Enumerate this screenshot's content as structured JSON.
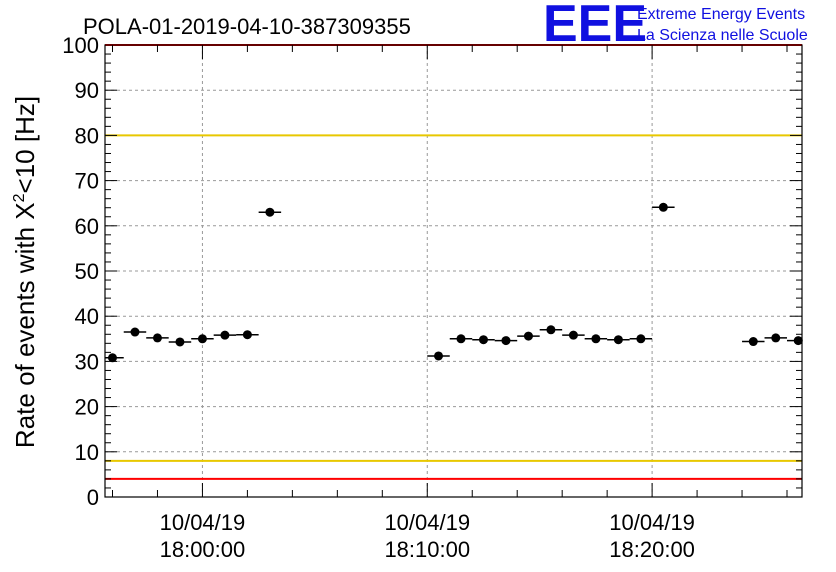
{
  "chart_data": {
    "type": "scatter",
    "title": "POLA-01-2019-04-10-387309355",
    "ylabel_main": "Rate of events with X",
    "ylabel_sup": "2",
    "ylabel_rest": "<10 [Hz]",
    "ylim": [
      0,
      100
    ],
    "yticks": [
      "0",
      "10",
      "20",
      "30",
      "40",
      "50",
      "60",
      "70",
      "80",
      "90",
      "100"
    ],
    "xlim": [
      "17:55:40",
      "18:26:40"
    ],
    "xticks": [
      {
        "date": "10/04/19",
        "time": "18:00:00"
      },
      {
        "date": "10/04/19",
        "time": "18:10:00"
      },
      {
        "date": "10/04/19",
        "time": "18:20:00"
      }
    ],
    "grid": true,
    "points": [
      {
        "x": "17:56:00",
        "y": 30.8
      },
      {
        "x": "17:57:00",
        "y": 36.5
      },
      {
        "x": "17:58:00",
        "y": 35.2
      },
      {
        "x": "17:59:00",
        "y": 34.3
      },
      {
        "x": "18:00:00",
        "y": 35.0
      },
      {
        "x": "18:01:00",
        "y": 35.8
      },
      {
        "x": "18:02:00",
        "y": 35.9
      },
      {
        "x": "18:03:00",
        "y": 63.0
      },
      {
        "x": "18:10:30",
        "y": 31.2
      },
      {
        "x": "18:11:30",
        "y": 35.0
      },
      {
        "x": "18:12:30",
        "y": 34.8
      },
      {
        "x": "18:13:30",
        "y": 34.6
      },
      {
        "x": "18:14:30",
        "y": 35.6
      },
      {
        "x": "18:15:30",
        "y": 37.0
      },
      {
        "x": "18:16:30",
        "y": 35.8
      },
      {
        "x": "18:17:30",
        "y": 35.0
      },
      {
        "x": "18:18:30",
        "y": 34.8
      },
      {
        "x": "18:19:30",
        "y": 35.0
      },
      {
        "x": "18:20:30",
        "y": 64.1
      },
      {
        "x": "18:24:30",
        "y": 34.4
      },
      {
        "x": "18:25:30",
        "y": 35.2
      },
      {
        "x": "18:26:30",
        "y": 34.6
      }
    ],
    "bin_width_minutes": 1,
    "reference_lines": [
      {
        "y": 100,
        "color": "#ff0000"
      },
      {
        "y": 80,
        "color": "#e8c800"
      },
      {
        "y": 8,
        "color": "#e8c800"
      },
      {
        "y": 4,
        "color": "#ff0000"
      }
    ]
  },
  "logo": {
    "mark": "EEE",
    "line1": "Extreme Energy Events",
    "line2": "La Scienza nelle Scuole",
    "color": "#1010e0"
  }
}
